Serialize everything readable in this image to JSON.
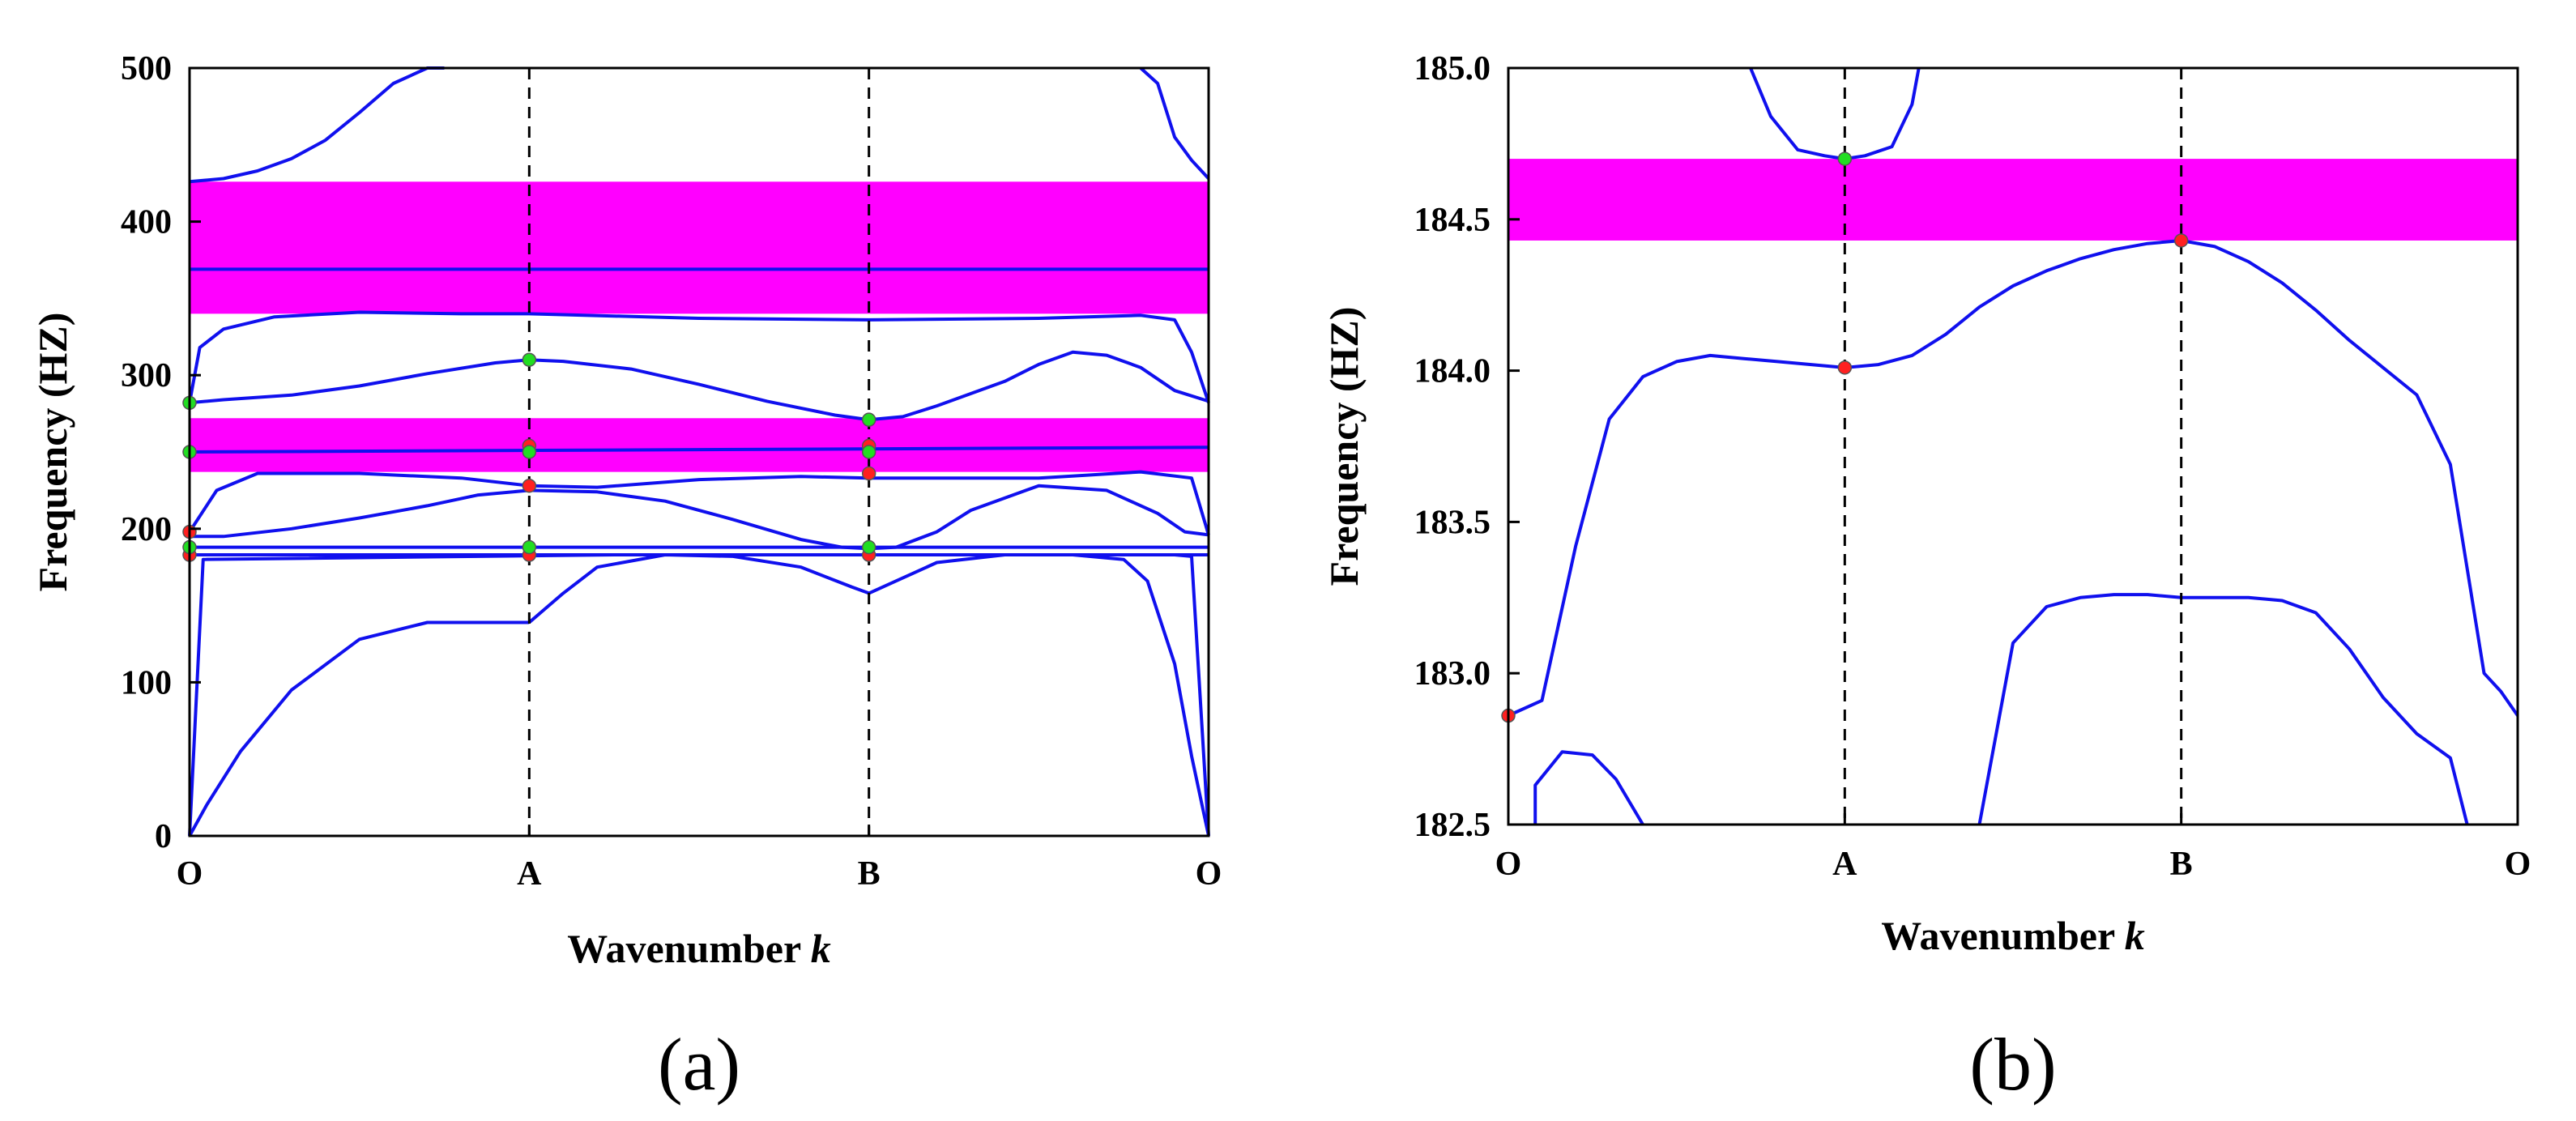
{
  "colors": {
    "band": "#1010ee",
    "gap": "#ff00ff",
    "marker_red": "#ff2020",
    "marker_green": "#22dd22"
  },
  "chart_data": [
    {
      "type": "line",
      "panel_label": "(a)",
      "xlabel": "Wavenumber k",
      "xlabel_main": "Wavenumber ",
      "xlabel_var": "k",
      "ylabel": "Frequency (HZ)",
      "ylim": [
        0,
        500
      ],
      "yticks": [
        "0",
        "100",
        "200",
        "300",
        "400",
        "500"
      ],
      "ytick_values": [
        0,
        100,
        200,
        300,
        400,
        500
      ],
      "xlim": [
        0,
        3
      ],
      "xticks": [
        "O",
        "A",
        "B",
        "O"
      ],
      "xtick_values": [
        0,
        1,
        2,
        3
      ],
      "band_gaps": [
        [
          340,
          426
        ],
        [
          237,
          272
        ]
      ],
      "series": [
        {
          "x": [
            0,
            0.05,
            0.15,
            0.3,
            0.5,
            0.7,
            0.9,
            1
          ],
          "y": [
            0,
            20,
            55,
            95,
            128,
            139,
            139,
            139
          ]
        },
        {
          "x": [
            0,
            0.04,
            1.25,
            1.95,
            2.9,
            2.95,
            3
          ],
          "y": [
            0,
            180,
            183,
            183,
            183,
            182,
            0
          ]
        },
        {
          "x": [
            1,
            1.1,
            1.2,
            1.4,
            1.6,
            1.8,
            1.95,
            2
          ],
          "y": [
            139,
            158,
            175,
            183,
            182,
            175,
            162,
            158
          ]
        },
        {
          "x": [
            2,
            2.06,
            2.2,
            2.4,
            2.6,
            2.75,
            2.82,
            2.9,
            2.95,
            3
          ],
          "y": [
            158,
            164,
            178,
            183,
            183,
            180,
            166,
            112,
            52,
            0
          ]
        },
        {
          "x": [
            0,
            3
          ],
          "y": [
            183,
            183
          ]
        },
        {
          "x": [
            0,
            3
          ],
          "y": [
            188,
            188
          ]
        },
        {
          "x": [
            0,
            0.1,
            0.3,
            0.5,
            0.7,
            0.85,
            1,
            1.2,
            1.4,
            1.6,
            1.8,
            1.92,
            2,
            2.08,
            2.2,
            2.3,
            2.5,
            2.7,
            2.85,
            2.93,
            3
          ],
          "y": [
            195,
            195,
            200,
            207,
            215,
            222,
            225,
            224,
            218,
            206,
            193,
            188,
            187,
            188,
            198,
            212,
            228,
            225,
            210,
            198,
            196
          ]
        },
        {
          "x": [
            0,
            0.08,
            0.2,
            0.5,
            0.8,
            1,
            1.2,
            1.5,
            1.8,
            2,
            2.2,
            2.5,
            2.8,
            2.95,
            3
          ],
          "y": [
            198,
            225,
            236,
            236,
            233,
            228,
            227,
            232,
            234,
            233,
            233,
            233,
            237,
            233,
            196
          ]
        },
        {
          "x": [
            0,
            3
          ],
          "y": [
            250,
            253
          ]
        },
        {
          "x": [
            0,
            0.1,
            0.3,
            0.5,
            0.7,
            0.9,
            1,
            1.1,
            1.3,
            1.5,
            1.7,
            1.9,
            2,
            2.1,
            2.2,
            2.4,
            2.5,
            2.6,
            2.7,
            2.8,
            2.9,
            3
          ],
          "y": [
            282,
            284,
            287,
            293,
            301,
            308,
            310,
            309,
            304,
            294,
            283,
            274,
            271,
            273,
            280,
            296,
            307,
            315,
            313,
            305,
            290,
            283
          ]
        },
        {
          "x": [
            0,
            0.03,
            0.1,
            0.25,
            0.5,
            0.8,
            1,
            1.5,
            2,
            2.5,
            2.8,
            2.9,
            2.95,
            3
          ],
          "y": [
            282,
            318,
            330,
            338,
            341,
            340,
            340,
            337,
            336,
            337,
            339,
            336,
            315,
            282
          ]
        },
        {
          "x": [
            0,
            3
          ],
          "y": [
            369,
            369
          ]
        },
        {
          "x": [
            0,
            0.1,
            0.2,
            0.3,
            0.4,
            0.5,
            0.6,
            0.7,
            0.75
          ],
          "y": [
            426,
            428,
            433,
            441,
            453,
            471,
            490,
            505,
            510
          ]
        },
        {
          "x": [
            2.8,
            2.85,
            2.9,
            2.95,
            3
          ],
          "y": [
            510,
            490,
            455,
            440,
            428
          ]
        }
      ],
      "markers": [
        {
          "x": 0,
          "y": 183,
          "color": "red"
        },
        {
          "x": 0,
          "y": 198,
          "color": "red"
        },
        {
          "x": 0,
          "y": 188,
          "color": "green"
        },
        {
          "x": 0,
          "y": 250,
          "color": "green"
        },
        {
          "x": 0,
          "y": 282,
          "color": "green"
        },
        {
          "x": 1,
          "y": 183,
          "color": "red"
        },
        {
          "x": 1,
          "y": 228,
          "color": "red"
        },
        {
          "x": 1,
          "y": 254,
          "color": "red"
        },
        {
          "x": 1,
          "y": 188,
          "color": "green"
        },
        {
          "x": 1,
          "y": 250,
          "color": "green"
        },
        {
          "x": 1,
          "y": 310,
          "color": "green"
        },
        {
          "x": 2,
          "y": 183,
          "color": "red"
        },
        {
          "x": 2,
          "y": 236,
          "color": "red"
        },
        {
          "x": 2,
          "y": 254,
          "color": "red"
        },
        {
          "x": 2,
          "y": 188,
          "color": "green"
        },
        {
          "x": 2,
          "y": 250,
          "color": "green"
        },
        {
          "x": 2,
          "y": 271,
          "color": "green"
        }
      ]
    },
    {
      "type": "line",
      "panel_label": "(b)",
      "xlabel": "Wavenumber k",
      "xlabel_main": "Wavenumber ",
      "xlabel_var": "k",
      "ylabel": "Frequency (HZ)",
      "ylim": [
        182.5,
        185.0
      ],
      "yticks": [
        "182.5",
        "183.0",
        "183.5",
        "184.0",
        "184.5",
        "185.0"
      ],
      "ytick_values": [
        182.5,
        183.0,
        183.5,
        184.0,
        184.5,
        185.0
      ],
      "xlim": [
        0,
        3
      ],
      "xticks": [
        "O",
        "A",
        "B",
        "O"
      ],
      "xtick_values": [
        0,
        1,
        2,
        3
      ],
      "band_gaps": [
        [
          184.43,
          184.7
        ]
      ],
      "series": [
        {
          "x": [
            0,
            0.1,
            0.2,
            0.3,
            0.4,
            0.5,
            0.6,
            0.7,
            0.8,
            0.9,
            1,
            1.1,
            1.2,
            1.3,
            1.4,
            1.5,
            1.6,
            1.7,
            1.8,
            1.9,
            2,
            2.1,
            2.2,
            2.3,
            2.4,
            2.5,
            2.6,
            2.7,
            2.8,
            2.9,
            2.95,
            3
          ],
          "y": [
            182.86,
            182.91,
            183.42,
            183.84,
            183.98,
            184.03,
            184.05,
            184.04,
            184.03,
            184.02,
            184.01,
            184.02,
            184.05,
            184.12,
            184.21,
            184.28,
            184.33,
            184.37,
            184.4,
            184.42,
            184.43,
            184.41,
            184.36,
            184.29,
            184.2,
            184.1,
            184.01,
            183.92,
            183.69,
            183.0,
            182.94,
            182.86
          ]
        },
        {
          "x": [
            1.4,
            1.5,
            1.6,
            1.7,
            1.8,
            1.9,
            2,
            2.1,
            2.2,
            2.3,
            2.4,
            2.5,
            2.6,
            2.7,
            2.8,
            2.85
          ],
          "y": [
            182.5,
            183.1,
            183.22,
            183.25,
            183.26,
            183.26,
            183.25,
            183.25,
            183.25,
            183.24,
            183.2,
            183.08,
            182.92,
            182.8,
            182.72,
            182.5
          ]
        },
        {
          "x": [
            0.08,
            0.08,
            0.16,
            0.25,
            0.32,
            0.4
          ],
          "y": [
            182.5,
            182.63,
            182.74,
            182.73,
            182.65,
            182.5
          ]
        },
        {
          "x": [
            0.72,
            0.78,
            0.86,
            0.94,
            1,
            1.06,
            1.14,
            1.2,
            1.22
          ],
          "y": [
            185.0,
            184.84,
            184.73,
            184.71,
            184.7,
            184.71,
            184.74,
            184.88,
            185.0
          ]
        }
      ],
      "markers": [
        {
          "x": 0,
          "y": 182.86,
          "color": "red"
        },
        {
          "x": 1,
          "y": 184.01,
          "color": "red"
        },
        {
          "x": 1,
          "y": 184.7,
          "color": "green"
        },
        {
          "x": 2,
          "y": 184.43,
          "color": "red"
        }
      ]
    }
  ]
}
